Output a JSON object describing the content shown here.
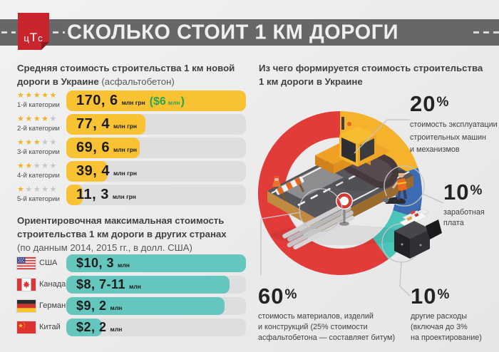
{
  "header": {
    "logo": {
      "l1": "ц",
      "l2": "Т",
      "l3": "с"
    },
    "title": "СКОЛЬКО СТОИТ 1 КМ ДОРОГИ"
  },
  "palette": {
    "bar_yellow": "#f9c233",
    "bar_teal": "#64c6bc",
    "bar_track": "#dedede",
    "star_on": "#f3b229",
    "star_off": "#c7c7c9",
    "usd_green": "#2aa64d",
    "band_gray": "#67676a",
    "logo_red": "#c8252c"
  },
  "ukraine_section": {
    "heading_line1": "Средняя стоимость строительства 1 км новой",
    "heading_line2_bold": "дороги в Украине",
    "heading_line2_note": "(асфальтобетон)",
    "rows": [
      {
        "stars_on": "★★★★★",
        "stars_off": "",
        "label": "1-й категории",
        "value": "170, 6",
        "unit": "млн грн",
        "usd_big": "($6",
        "usd_small": "млн",
        "usd_close": ")",
        "pct": 100
      },
      {
        "stars_on": "★★★★",
        "stars_off": "★",
        "label": "2-й категории",
        "value": "77, 4",
        "unit": "млн грн",
        "pct": 44
      },
      {
        "stars_on": "★★★",
        "stars_off": "★★",
        "label": "3-й категории",
        "value": "69, 6",
        "unit": "млн грн",
        "pct": 41
      },
      {
        "stars_on": "★★",
        "stars_off": "★★★",
        "label": "4-й категории",
        "value": "39, 4",
        "unit": "млн грн",
        "pct": 23
      },
      {
        "stars_on": "★",
        "stars_off": "★★★★",
        "label": "5-й категории",
        "value": "11, 3",
        "unit": "млн грн",
        "pct": 9
      }
    ]
  },
  "countries_section": {
    "heading_line1": "Ориентировочная максимальная стоимость",
    "heading_line2": "строительства 1 км дороги в других странах",
    "heading_note": "(по данным 2014, 2015 гг., в долл. США)",
    "rows": [
      {
        "flag": "usa",
        "country": "США",
        "value": "$10, 3",
        "unit": "млн",
        "pct": 100
      },
      {
        "flag": "canada",
        "country": "Канада",
        "value": "$8, 7-11",
        "unit": "млн",
        "pct": 91
      },
      {
        "flag": "germany",
        "country": "Германия",
        "value": "$9, 2",
        "unit": "млн",
        "pct": 88
      },
      {
        "flag": "china",
        "country": "Китай",
        "value": "$2, 2",
        "unit": "млн",
        "pct": 20
      }
    ]
  },
  "breakdown_section": {
    "heading_line1": "Из чего формируется стоимость строительства",
    "heading_line2": "1 км дороги в Украине",
    "percent_sign": "%",
    "segments": [
      {
        "pct": "20",
        "color": "#f5b22c",
        "caption_lines": [
          "стоимость эксплуатации",
          "строительных машин",
          "и механизмов"
        ]
      },
      {
        "pct": "10",
        "color": "#3c6cb4",
        "caption_lines": [
          "заработная",
          "плата"
        ]
      },
      {
        "pct": "60",
        "color": "#e23c3a",
        "caption_lines": [
          "стоимость материалов, изделий",
          "и конструкций (25% стоимости",
          "асфальтобетона — составляет битум)"
        ]
      },
      {
        "pct": "10",
        "color": "#49c5b9",
        "caption_lines": [
          "другие расходы",
          "(включая до 3%",
          "на проектирование)"
        ]
      }
    ]
  },
  "chart_data": [
    {
      "type": "bar",
      "title": "Средняя стоимость строительства 1 км новой дороги в Украине (асфальтобетон)",
      "categories": [
        "1-й категории",
        "2-й категории",
        "3-й категории",
        "4-й категории",
        "5-й категории"
      ],
      "star_ratings": [
        5,
        4,
        3,
        2,
        1
      ],
      "values": [
        170.6,
        77.4,
        69.6,
        39.4,
        11.3
      ],
      "unit": "млн грн",
      "annotations": [
        "170,6 млн грн ($6 млн)"
      ],
      "bar_color": "#f9c233",
      "xlim": [
        0,
        170.6
      ]
    },
    {
      "type": "bar",
      "title": "Ориентировочная максимальная стоимость строительства 1 км дороги в других странах (по данным 2014, 2015 гг., в долл. США)",
      "categories": [
        "США",
        "Канада",
        "Германия",
        "Китай"
      ],
      "values": [
        10.3,
        11,
        9.2,
        2.2
      ],
      "values_display": [
        "$10,3 млн",
        "$8,7-11 млн",
        "$9,2 млн",
        "$2,2 млн"
      ],
      "unit": "млн долл. США",
      "bar_color": "#64c6bc",
      "xlim": [
        0,
        11
      ]
    },
    {
      "type": "pie",
      "donut": true,
      "title": "Из чего формируется стоимость строительства 1 км дороги в Украине",
      "slices": [
        {
          "label": "стоимость эксплуатации строительных машин и механизмов",
          "value": 20,
          "color": "#f5b22c"
        },
        {
          "label": "заработная плата",
          "value": 10,
          "color": "#3c6cb4"
        },
        {
          "label": "другие расходы (включая до 3% на проектирование)",
          "value": 10,
          "color": "#49c5b9"
        },
        {
          "label": "стоимость материалов, изделий и конструкций (25% стоимости асфальтобетона — составляет битум)",
          "value": 60,
          "color": "#e23c3a"
        }
      ]
    }
  ]
}
